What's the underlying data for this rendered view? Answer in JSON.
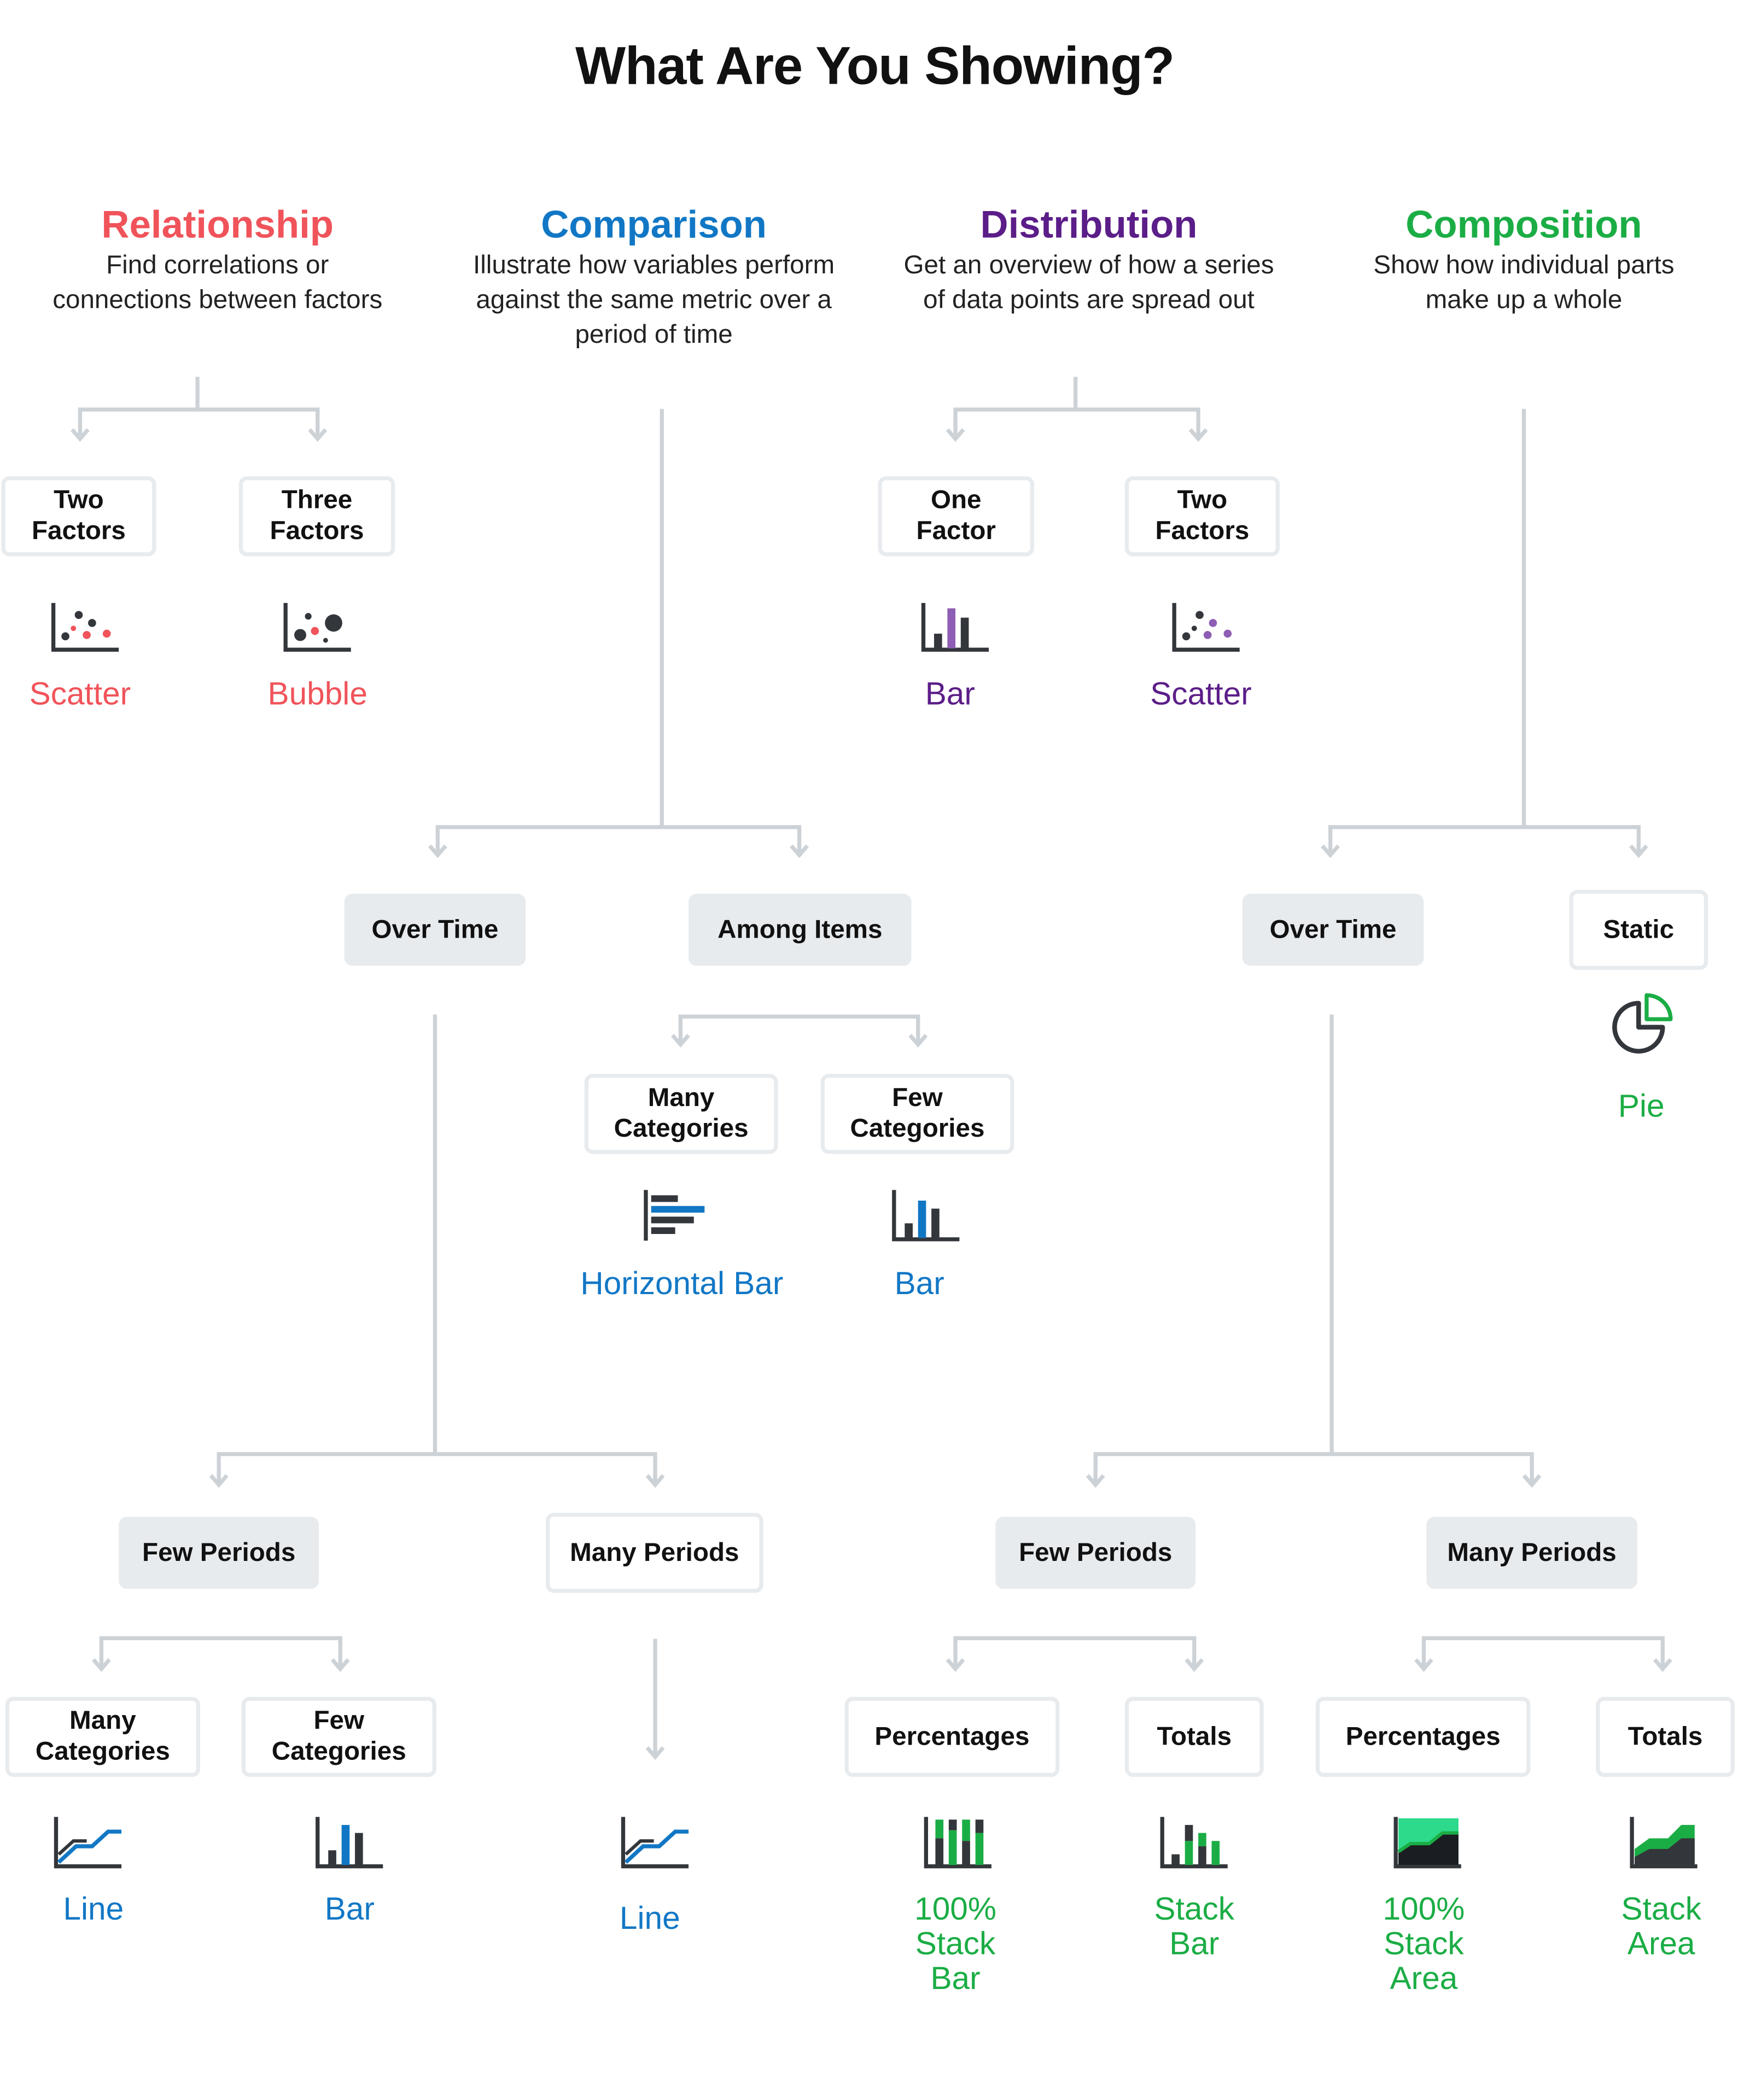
{
  "title": "What Are You Showing?",
  "colors": {
    "relationship": "#f0535a",
    "comparison": "#1177c5",
    "distribution": "#5b1d88",
    "composition": "#1bad45",
    "connector": "#cdd2d7",
    "box_fill": "#e8ebee"
  },
  "categories": {
    "relationship": {
      "title": "Relationship",
      "desc1": "Find correlations or",
      "desc2": "connections between factors"
    },
    "comparison": {
      "title": "Comparison",
      "desc1": "Illustrate how variables perform",
      "desc2": "against the same metric over a",
      "desc3": "period of time"
    },
    "distribution": {
      "title": "Distribution",
      "desc1": "Get an overview of how a series",
      "desc2": "of data points are spread out"
    },
    "composition": {
      "title": "Composition",
      "desc1": "Show how individual parts",
      "desc2": "make up a whole"
    }
  },
  "relationship": {
    "two_factors": {
      "l1": "Two",
      "l2": "Factors",
      "chart": "Scatter",
      "icon": "scatter-icon"
    },
    "three_factors": {
      "l1": "Three",
      "l2": "Factors",
      "chart": "Bubble",
      "icon": "bubble-icon"
    }
  },
  "distribution": {
    "one_factor": {
      "l1": "One",
      "l2": "Factor",
      "chart": "Bar",
      "icon": "bar-chart-icon"
    },
    "two_factors": {
      "l1": "Two",
      "l2": "Factors",
      "chart": "Scatter",
      "icon": "scatter-icon"
    }
  },
  "comparison": {
    "over_time": "Over Time",
    "among_items": "Among Items",
    "among_many": {
      "l1": "Many",
      "l2": "Categories",
      "chart": "Horizontal Bar",
      "icon": "horizontal-bar-icon"
    },
    "among_few": {
      "l1": "Few",
      "l2": "Categories",
      "chart": "Bar",
      "icon": "bar-chart-icon"
    },
    "few_periods": "Few Periods",
    "many_periods": "Many Periods",
    "few_many_cat": {
      "l1": "Many",
      "l2": "Categories",
      "chart": "Line",
      "icon": "line-chart-icon"
    },
    "few_few_cat": {
      "l1": "Few",
      "l2": "Categories",
      "chart": "Bar",
      "icon": "bar-chart-icon"
    },
    "many_periods_chart": {
      "chart": "Line",
      "icon": "line-chart-icon"
    }
  },
  "composition": {
    "over_time": "Over Time",
    "static": "Static",
    "static_chart": {
      "chart": "Pie",
      "icon": "pie-chart-icon"
    },
    "few_periods": "Few Periods",
    "many_periods": "Many Periods",
    "few_percentages": {
      "label": "Percentages",
      "chart1": "100%",
      "chart2": "Stack",
      "chart3": "Bar",
      "icon": "stacked-bar-100-icon"
    },
    "few_totals": {
      "label": "Totals",
      "chart1": "Stack",
      "chart2": "Bar",
      "icon": "stacked-bar-icon"
    },
    "many_percentages": {
      "label": "Percentages",
      "chart1": "100%",
      "chart2": "Stack",
      "chart3": "Area",
      "icon": "stacked-area-100-icon"
    },
    "many_totals": {
      "label": "Totals",
      "chart1": "Stack",
      "chart2": "Area",
      "icon": "stacked-area-icon"
    }
  }
}
